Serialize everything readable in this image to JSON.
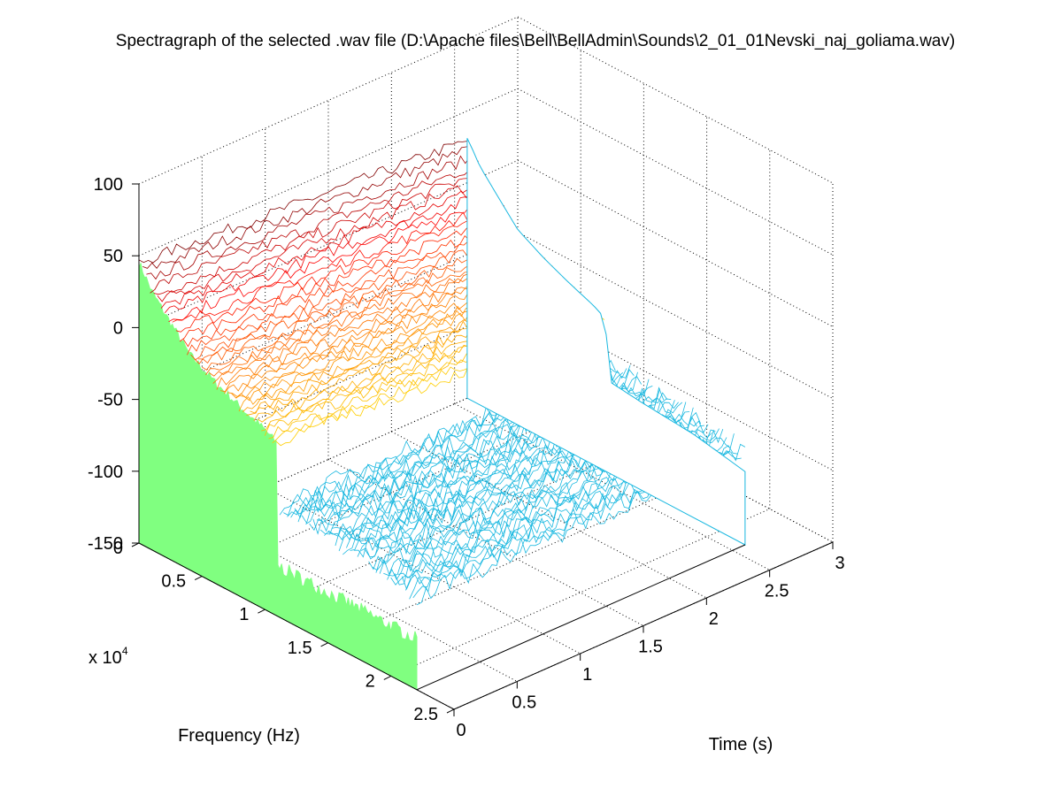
{
  "chart_data": {
    "type": "surface-3d",
    "title": "Spectragraph of the selected .wav file (D:\\Apache files\\Bell\\BellAdmin\\Sounds\\2_01_01Nevski_naj_goliama.wav)",
    "xlabel": "Time (s)",
    "ylabel": "Frequency (Hz)",
    "zlabel": "",
    "y_exponent_label": "x 10",
    "y_exponent_power": "4",
    "xlim": [
      0,
      3
    ],
    "ylim": [
      0,
      25000
    ],
    "zlim": [
      -150,
      100
    ],
    "x_ticks": [
      "0",
      "0.5",
      "1",
      "1.5",
      "2",
      "2.5",
      "3"
    ],
    "y_ticks": [
      "0",
      "0.5",
      "1",
      "1.5",
      "2",
      "2.5"
    ],
    "z_ticks": [
      "100",
      "50",
      "0",
      "-50",
      "-100",
      "-150"
    ],
    "grid": true,
    "colormap": "jet",
    "surface": {
      "time_extent_s": [
        0,
        2.6
      ],
      "freq_extent_hz": [
        0,
        22050
      ],
      "low_band_hz": [
        0,
        11000
      ],
      "high_band_level_db": -80,
      "profile_freq_hz": [
        0,
        500,
        1000,
        2000,
        3000,
        4000,
        5000,
        6000,
        8000,
        10000,
        11000,
        11100,
        14000,
        18000,
        22050
      ],
      "profile_level_db": [
        45,
        38,
        30,
        20,
        10,
        0,
        -5,
        -10,
        -18,
        -25,
        -30,
        -72,
        -75,
        -78,
        -85
      ]
    },
    "colors": {
      "floor": "#80ff80",
      "baseline": "#0000cc",
      "high_band": "#1ab8e0"
    }
  }
}
